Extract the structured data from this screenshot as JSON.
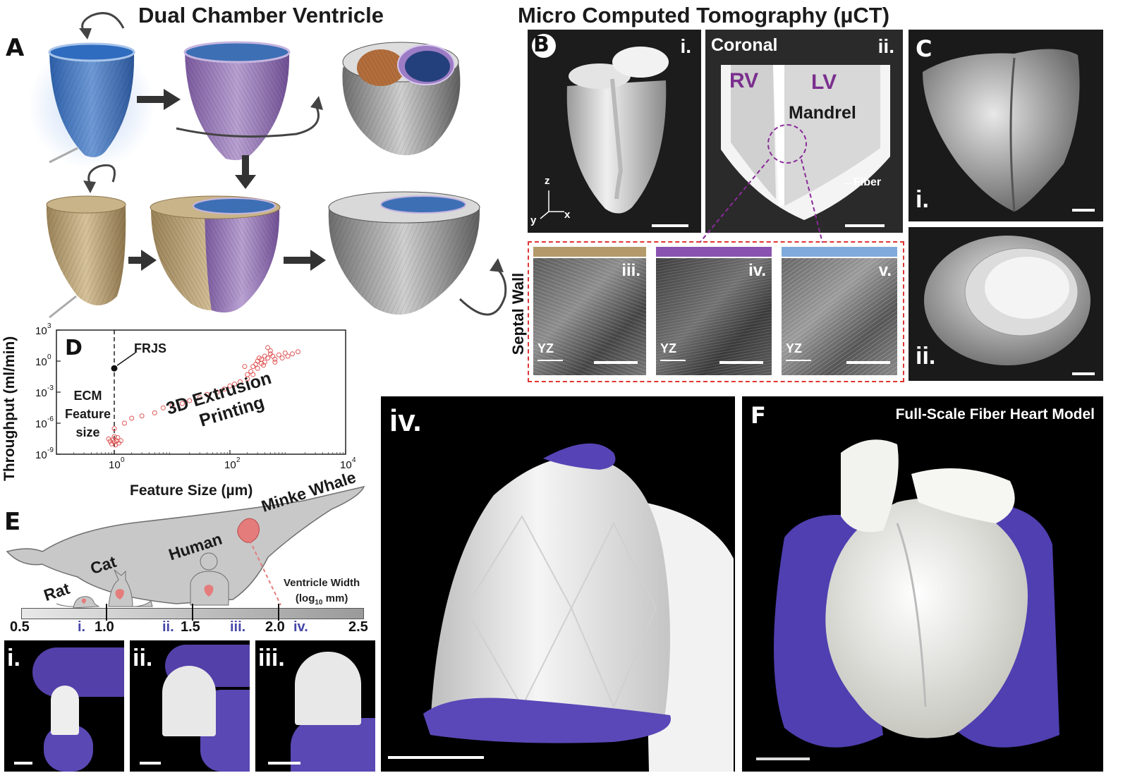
{
  "panel_a": {
    "letter": "A",
    "title": "Dual Chamber Ventricle"
  },
  "panel_b": {
    "letter": "B",
    "title": "Micro Computed Tomography (µCT)",
    "sub_i": "i.",
    "sub_ii": "ii.",
    "coronal": "Coronal",
    "rv": "RV",
    "lv": "LV",
    "mandrel": "Mandrel",
    "fiber": "Fiber",
    "axis_z": "z",
    "axis_x": "x",
    "axis_y": "y",
    "septal_wall": "Septal Wall",
    "sub_iii": "iii.",
    "sub_iv": "iv.",
    "sub_v": "v.",
    "yz": "YZ",
    "color_bars": [
      "#b49a6a",
      "#8a52b0",
      "#80aadb"
    ]
  },
  "panel_c": {
    "letter": "C",
    "sub_i": "i.",
    "sub_ii": "ii."
  },
  "panel_d": {
    "letter": "D",
    "chart_data": {
      "type": "scatter",
      "xlabel": "Feature Size (µm)",
      "ylabel": "Throughput (ml/min)",
      "x_scale": "log",
      "y_scale": "log",
      "xlim": [
        0.1,
        10000
      ],
      "ylim": [
        1e-09,
        1000
      ],
      "x_tick_labels": [
        {
          "base": "10",
          "exp": "0"
        },
        {
          "base": "10",
          "exp": "2"
        },
        {
          "base": "10",
          "exp": "4"
        }
      ],
      "y_tick_labels": [
        {
          "base": "10",
          "exp": "-9"
        },
        {
          "base": "10",
          "exp": "-6"
        },
        {
          "base": "10",
          "exp": "-3"
        },
        {
          "base": "10",
          "exp": "0"
        },
        {
          "base": "10",
          "exp": "3"
        }
      ],
      "frjs_label": "FRJS",
      "frjs_point": {
        "x": 1,
        "y": 0.2
      },
      "ecm_label": [
        "ECM",
        "Feature",
        "size"
      ],
      "ecm_line_x": 1,
      "extrusion_label": [
        "3D Extrusion",
        "Printing"
      ],
      "extrusion_points": [
        [
          0.9,
          1e-08
        ],
        [
          1.0,
          1.5e-08
        ],
        [
          1.1,
          2e-08
        ],
        [
          0.8,
          3e-08
        ],
        [
          1.05,
          8e-09
        ],
        [
          1.2,
          1.2e-08
        ],
        [
          0.95,
          2.5e-08
        ],
        [
          1.0,
          5e-08
        ],
        [
          0.85,
          1.8e-08
        ],
        [
          1.15,
          4e-08
        ],
        [
          1.3,
          2e-08
        ],
        [
          1.0,
          3e-07
        ],
        [
          1.5,
          1e-06
        ],
        [
          2,
          3e-06
        ],
        [
          3,
          5e-06
        ],
        [
          5,
          1e-05
        ],
        [
          7,
          3e-05
        ],
        [
          10,
          5e-05
        ],
        [
          15,
          8e-05
        ],
        [
          20,
          0.00015
        ],
        [
          30,
          0.0003
        ],
        [
          40,
          0.0006
        ],
        [
          60,
          0.001
        ],
        [
          80,
          0.002
        ],
        [
          100,
          0.004
        ],
        [
          120,
          0.006
        ],
        [
          150,
          0.01
        ],
        [
          200,
          0.05
        ],
        [
          230,
          0.1
        ],
        [
          250,
          0.3
        ],
        [
          280,
          0.5
        ],
        [
          300,
          1
        ],
        [
          320,
          2
        ],
        [
          350,
          1.5
        ],
        [
          400,
          3
        ],
        [
          450,
          2
        ],
        [
          500,
          5
        ],
        [
          550,
          3
        ],
        [
          600,
          1.5
        ],
        [
          700,
          4
        ],
        [
          800,
          2
        ],
        [
          900,
          6
        ],
        [
          1000,
          3
        ],
        [
          1200,
          5
        ],
        [
          1500,
          8
        ],
        [
          300,
          0.2
        ],
        [
          350,
          0.6
        ],
        [
          400,
          0.8
        ],
        [
          250,
          0.05
        ],
        [
          200,
          0.02
        ],
        [
          180,
          0.3
        ],
        [
          450,
          20
        ],
        [
          500,
          10
        ],
        [
          380,
          0.4
        ],
        [
          600,
          0.8
        ]
      ]
    }
  },
  "panel_e": {
    "letter": "E",
    "animals": [
      "Rat",
      "Cat",
      "Human",
      "Minke Whale"
    ],
    "ventricle_width": "Ventricle Width",
    "log_unit_prefix": "(log",
    "log_unit_sub": "10",
    "log_unit_suffix": " mm)",
    "scale_ticks": [
      "0.5",
      "1.0",
      "1.5",
      "2.0",
      "2.5"
    ],
    "markers": [
      "i.",
      "ii.",
      "iii.",
      "iv."
    ],
    "photo_labels": [
      "i.",
      "ii.",
      "iii.",
      "iv."
    ]
  },
  "panel_f": {
    "letter": "F",
    "title": "Full-Scale Fiber Heart Model"
  }
}
